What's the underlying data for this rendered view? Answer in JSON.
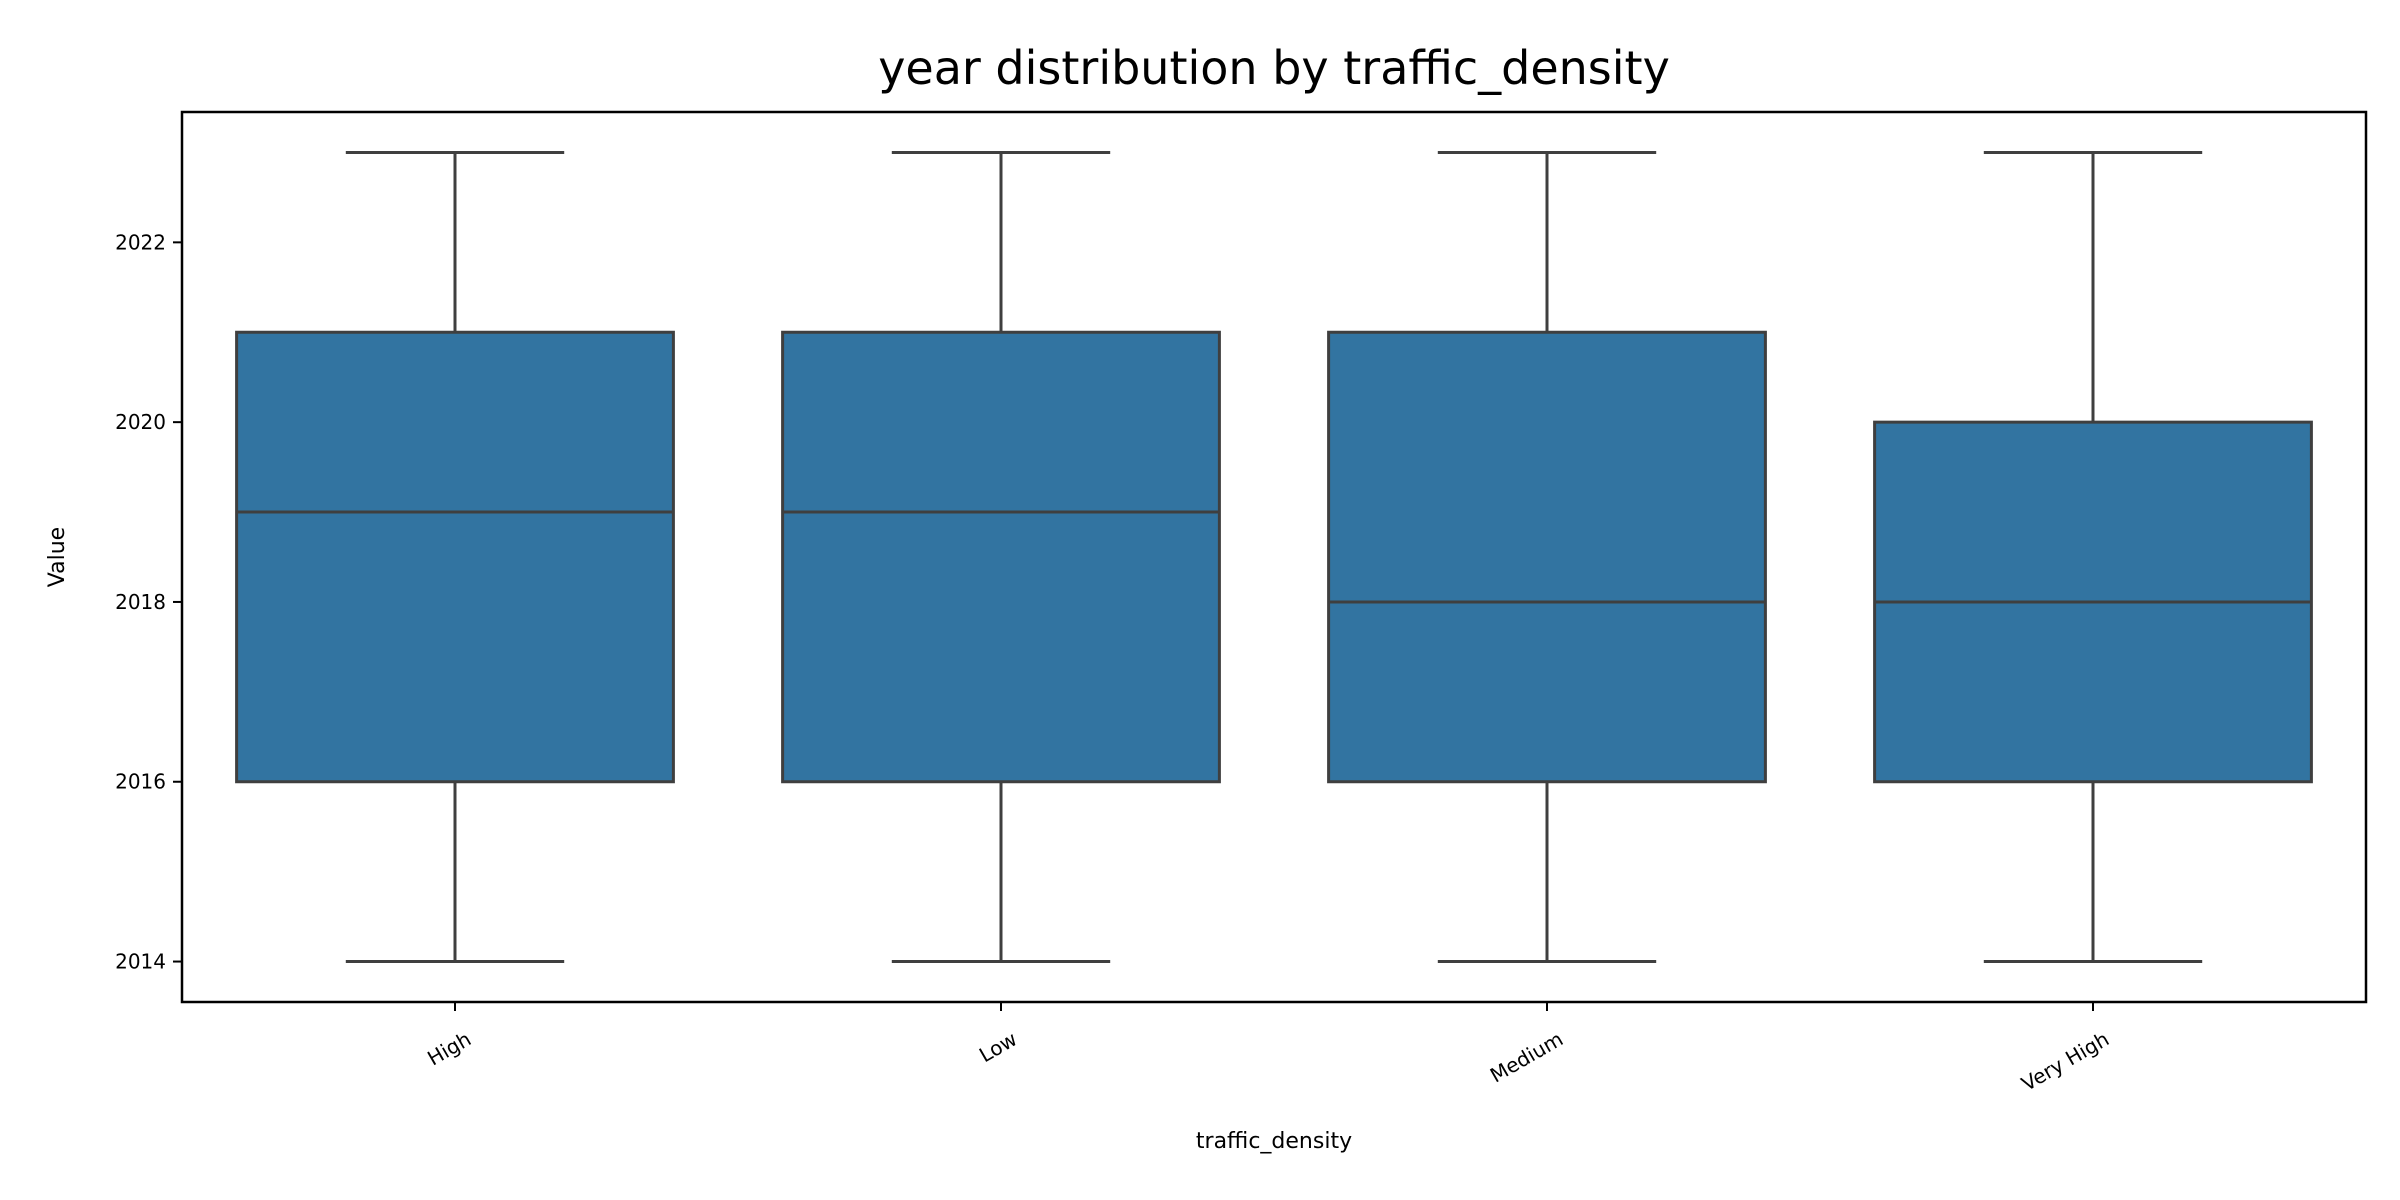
{
  "chart_data": {
    "type": "box",
    "title": "year distribution by traffic_density",
    "xlabel": "traffic_density",
    "ylabel": "Value",
    "ylim": [
      2013.55,
      2023.45
    ],
    "yticks": [
      2014,
      2016,
      2018,
      2020,
      2022
    ],
    "categories": [
      "High",
      "Low",
      "Medium",
      "Very High"
    ],
    "boxes": [
      {
        "category": "High",
        "min": 2014,
        "q1": 2016,
        "median": 2019,
        "q3": 2021,
        "max": 2023
      },
      {
        "category": "Low",
        "min": 2014,
        "q1": 2016,
        "median": 2019,
        "q3": 2021,
        "max": 2023
      },
      {
        "category": "Medium",
        "min": 2014,
        "q1": 2016,
        "median": 2018,
        "q3": 2021,
        "max": 2023
      },
      {
        "category": "Very High",
        "min": 2014,
        "q1": 2016,
        "median": 2018,
        "q3": 2020,
        "max": 2023
      }
    ],
    "box_color": "#3274a1",
    "line_color": "#3f3f3f",
    "grid": false,
    "legend": "none"
  }
}
